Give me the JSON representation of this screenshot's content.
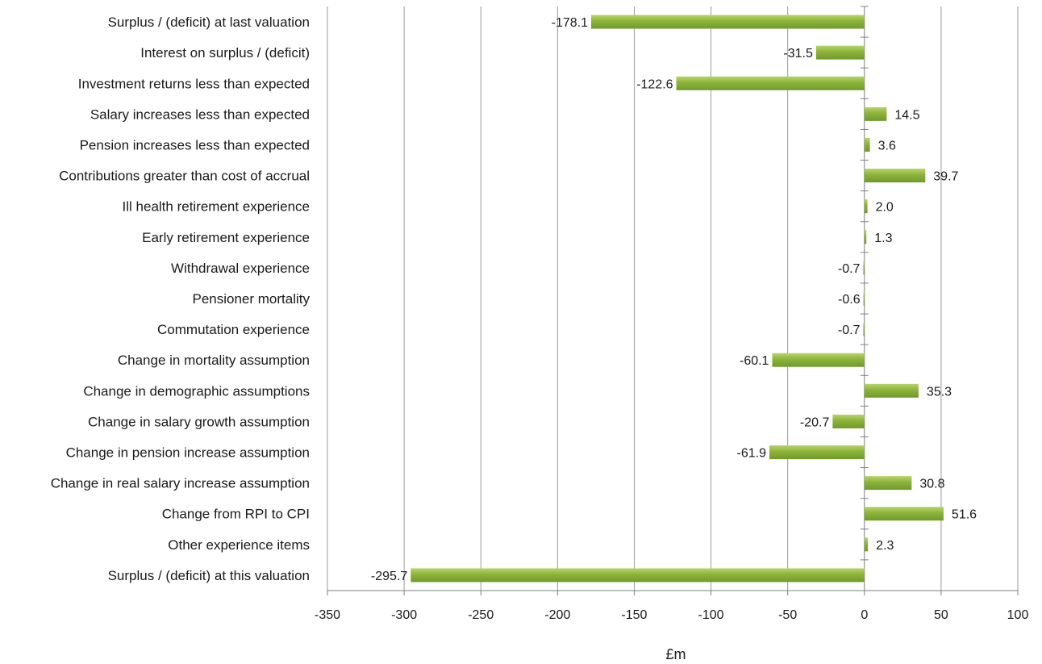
{
  "chart_data": {
    "type": "bar",
    "orientation": "horizontal",
    "categories": [
      "Surplus / (deficit) at last valuation",
      "Interest on surplus / (deficit)",
      "Investment returns less than expected",
      "Salary increases less than expected",
      "Pension increases less than expected",
      "Contributions greater than cost of accrual",
      "Ill health retirement experience",
      "Early retirement experience",
      "Withdrawal experience",
      "Pensioner mortality",
      "Commutation experience",
      "Change in mortality assumption",
      "Change in demographic assumptions",
      "Change in salary growth assumption",
      "Change in pension increase assumption",
      "Change in real salary increase assumption",
      "Change from RPI to CPI",
      "Other experience items",
      "Surplus / (deficit) at this valuation"
    ],
    "values": [
      -178.1,
      -31.5,
      -122.6,
      14.5,
      3.6,
      39.7,
      2.0,
      1.3,
      -0.7,
      -0.6,
      -0.7,
      -60.1,
      35.3,
      -20.7,
      -61.9,
      30.8,
      51.6,
      2.3,
      -295.7
    ],
    "value_labels": [
      "-178.1",
      "-31.5",
      "-122.6",
      "14.5",
      "3.6",
      "39.7",
      "2.0",
      "1.3",
      "-0.7",
      "-0.6",
      "-0.7",
      "-60.1",
      "35.3",
      "-20.7",
      "-61.9",
      "30.8",
      "51.6",
      "2.3",
      "-295.7"
    ],
    "xlabel": "£m",
    "xlim": [
      -350,
      100
    ],
    "xticks": [
      -350,
      -300,
      -250,
      -200,
      -150,
      -100,
      -50,
      0,
      50,
      100
    ],
    "grid": "vertical",
    "legend": "none",
    "bar_color": "#8db33a",
    "bar_color_dark": "#6f9a2a",
    "bar_color_light": "#b5d56a",
    "grid_color": "#9a9a9a"
  }
}
